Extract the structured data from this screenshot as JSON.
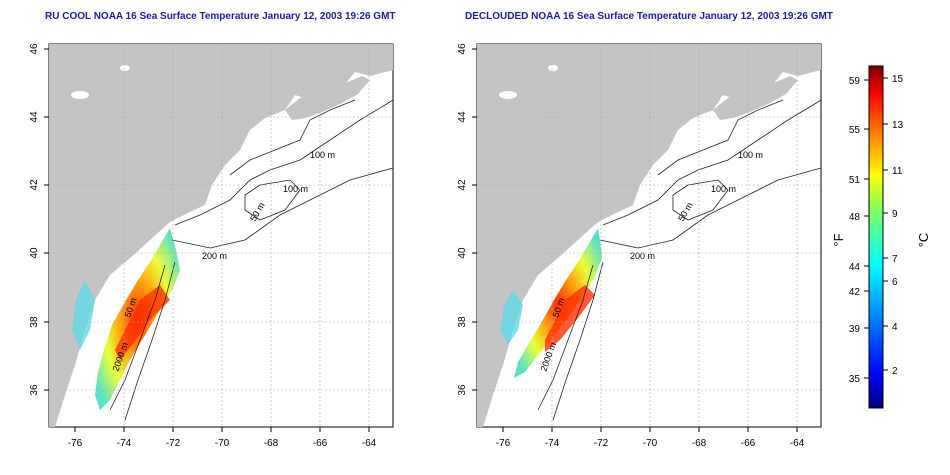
{
  "panels": [
    {
      "title": "RU COOL NOAA 16 Sea Surface Temperature January 12, 2003 19:26 GMT",
      "contour_labels": [
        "100 m",
        "100 m",
        "50 m",
        "200 m",
        "50 m",
        "2000 m"
      ]
    },
    {
      "title": "DECLOUDED NOAA 16 Sea Surface Temperature January 12, 2003 19:26 GMT",
      "contour_labels": [
        "100 m",
        "100 m",
        "50 m",
        "200 m",
        "50 m",
        "2000 m"
      ]
    }
  ],
  "axes": {
    "lon_ticks": [
      "-76",
      "-74",
      "-72",
      "-70",
      "-68",
      "-66",
      "-64"
    ],
    "lat_ticks": [
      "46",
      "44",
      "42",
      "40",
      "38",
      "36"
    ]
  },
  "colorbar": {
    "unit_f": "°F",
    "unit_c": "°C",
    "f_ticks": [
      "59",
      "55",
      "51",
      "48",
      "44",
      "42",
      "39",
      "35"
    ],
    "c_ticks": [
      "15",
      "13",
      "11",
      "9",
      "7",
      "6",
      "4",
      "2"
    ]
  },
  "colors": {
    "land": "#c4c4c4",
    "ocean": "#ffffff",
    "title": "#1a1aa8"
  }
}
